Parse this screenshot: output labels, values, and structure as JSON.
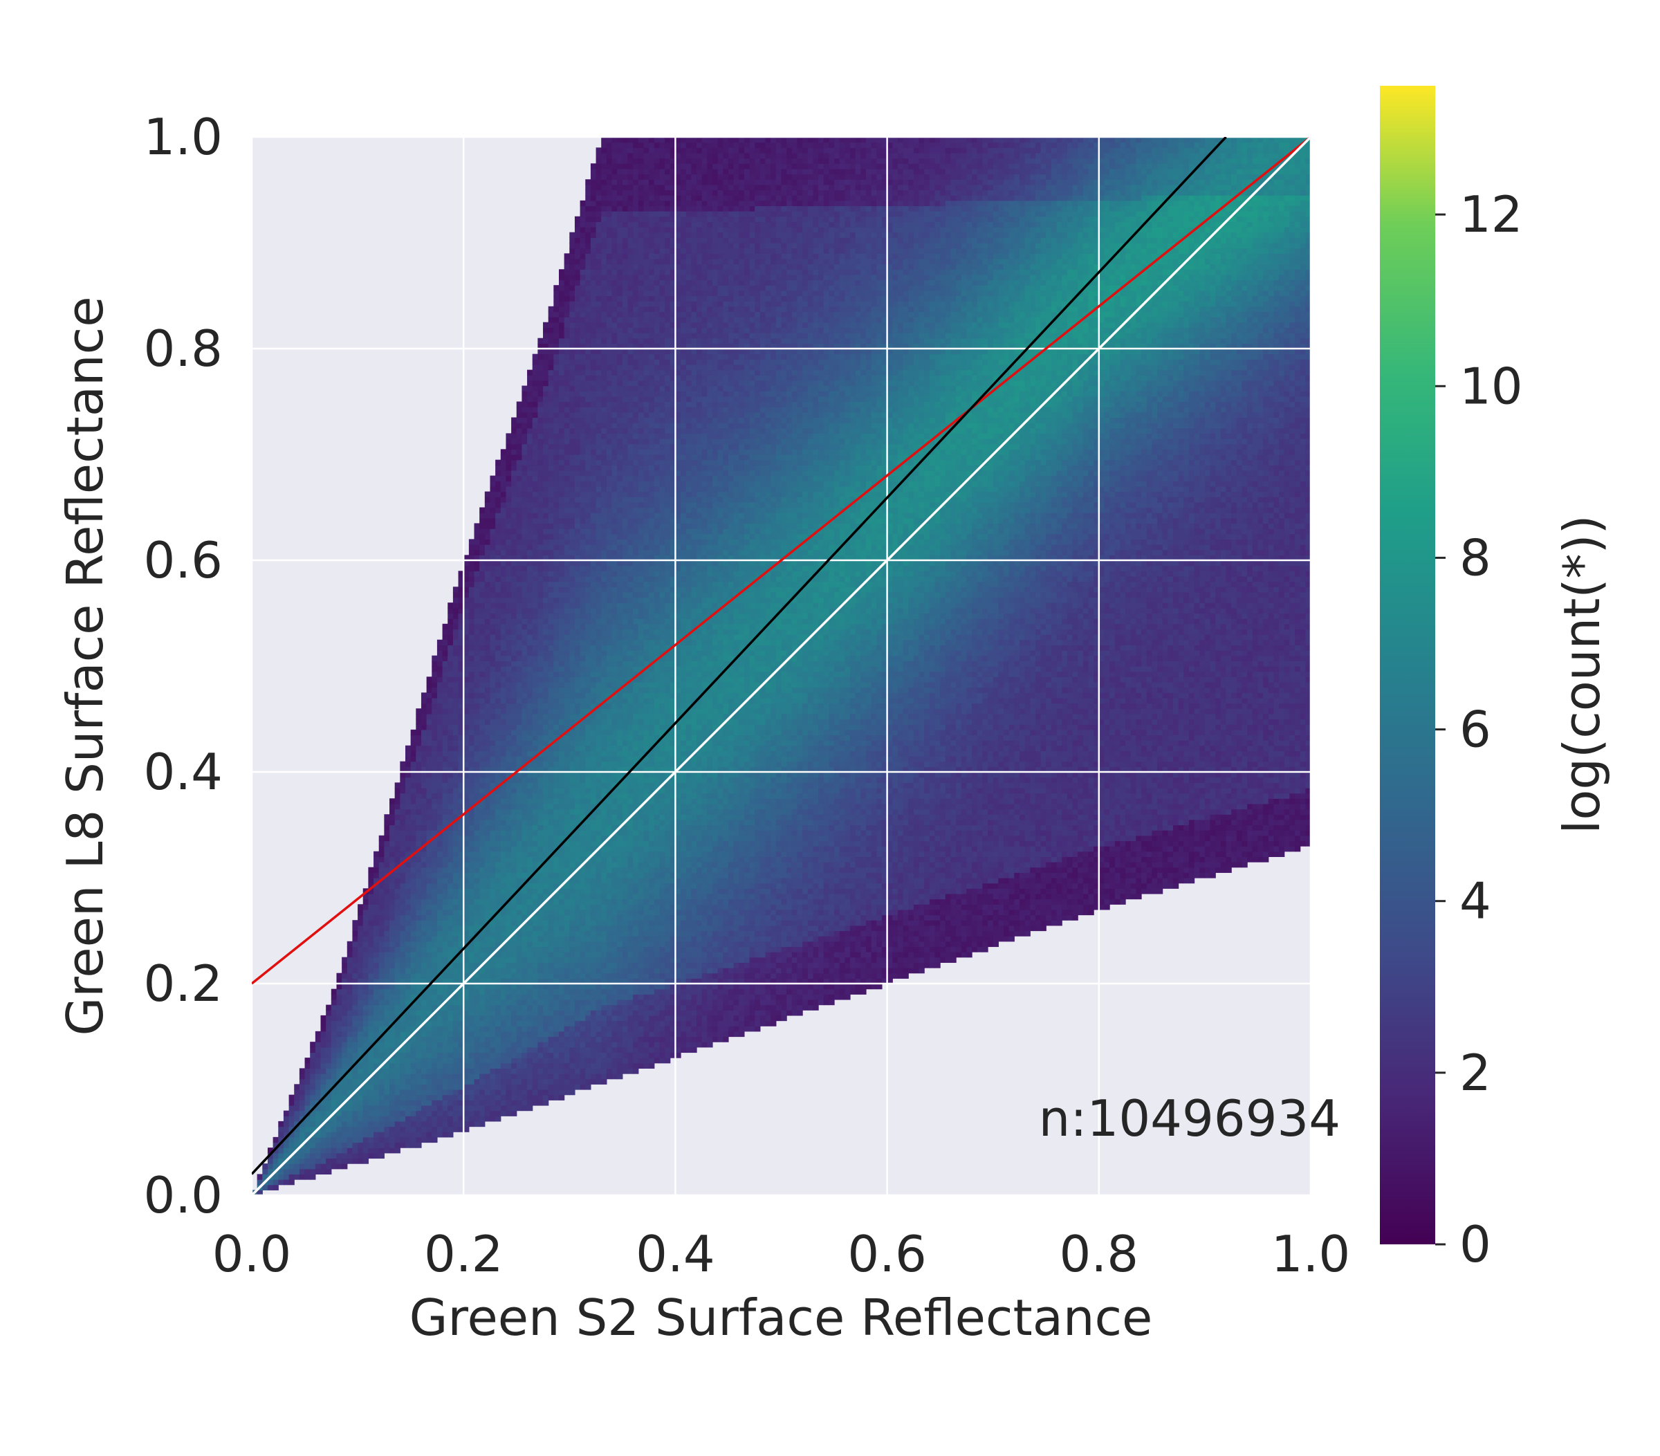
{
  "chart_data": {
    "type": "heatmap",
    "subtype": "2d-histogram-hexbin-like",
    "title": "",
    "xlabel": "Green S2 Surface Reflectance",
    "ylabel": "Green L8 Surface Reflectance",
    "xlim": [
      0.0,
      1.0
    ],
    "ylim": [
      0.0,
      1.0
    ],
    "xticks": [
      "0.0",
      "0.2",
      "0.4",
      "0.6",
      "0.8",
      "1.0"
    ],
    "yticks": [
      "0.0",
      "0.2",
      "0.4",
      "0.6",
      "0.8",
      "1.0"
    ],
    "xtick_values": [
      0.0,
      0.2,
      0.4,
      0.6,
      0.8,
      1.0
    ],
    "ytick_values": [
      0.0,
      0.2,
      0.4,
      0.6,
      0.8,
      1.0
    ],
    "grid": true,
    "annotation": "n:10496934",
    "data_region": {
      "description": "wedge of counts between two boundary lines",
      "upper_boundary": [
        [
          0.0,
          0.0
        ],
        [
          0.08,
          0.2
        ],
        [
          0.2,
          0.6
        ],
        [
          0.27,
          0.8
        ],
        [
          0.33,
          1.0
        ]
      ],
      "lower_boundary": [
        [
          0.0,
          0.0
        ],
        [
          0.2,
          0.06
        ],
        [
          0.4,
          0.13
        ],
        [
          0.6,
          0.2
        ],
        [
          0.8,
          0.27
        ],
        [
          1.0,
          0.33
        ]
      ]
    },
    "density_ridge": [
      [
        0.0,
        0.0
      ],
      [
        0.2,
        0.22
      ],
      [
        0.4,
        0.44
      ],
      [
        0.6,
        0.64
      ],
      [
        0.8,
        0.85
      ],
      [
        1.0,
        1.0
      ]
    ],
    "series": [
      {
        "kind": "line",
        "color": "#e01010",
        "x": [
          0.0,
          1.0
        ],
        "y": [
          0.2,
          1.0
        ]
      },
      {
        "kind": "line",
        "color": "#000000",
        "x": [
          0.0,
          0.92
        ],
        "y": [
          0.02,
          1.0
        ]
      },
      {
        "kind": "line",
        "color": "#ffffff",
        "x": [
          0.0,
          1.0
        ],
        "y": [
          0.0,
          1.0
        ]
      }
    ],
    "colorbar": {
      "label": "log(count(*))",
      "ticks": [
        "0",
        "2",
        "4",
        "6",
        "8",
        "10",
        "12"
      ],
      "tick_values": [
        0,
        2,
        4,
        6,
        8,
        10,
        12
      ],
      "range": [
        0,
        13.5
      ],
      "colormap": "viridis"
    },
    "colors": {
      "background": "#eaeaf2",
      "grid": "#ffffff",
      "text": "#262626"
    }
  }
}
